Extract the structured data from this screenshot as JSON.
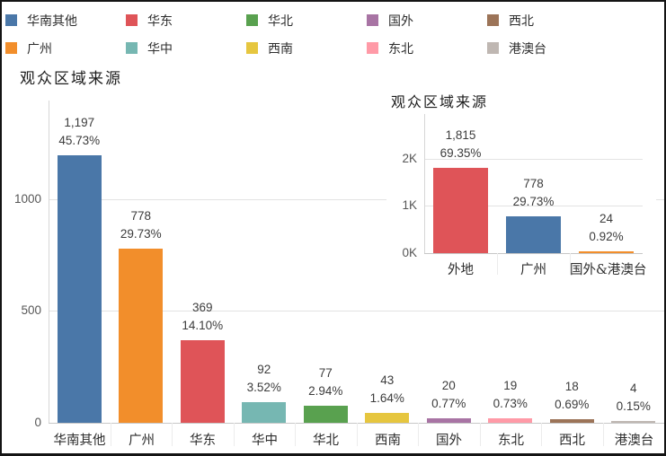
{
  "legend": {
    "items": [
      {
        "label": "华南其他",
        "color": "#4a77a8"
      },
      {
        "label": "华东",
        "color": "#df5458"
      },
      {
        "label": "华北",
        "color": "#59a14f"
      },
      {
        "label": "国外",
        "color": "#a874a4"
      },
      {
        "label": "西北",
        "color": "#9c7458"
      },
      {
        "label": "广州",
        "color": "#f28e2b"
      },
      {
        "label": "华中",
        "color": "#76b7b2"
      },
      {
        "label": "西南",
        "color": "#e6c63f"
      },
      {
        "label": "东北",
        "color": "#ff9aa7"
      },
      {
        "label": "港澳台",
        "color": "#bfb7b2"
      }
    ]
  },
  "chart_data": [
    {
      "id": "main",
      "type": "bar",
      "title": "观众区域来源",
      "categories": [
        "华南其他",
        "广州",
        "华东",
        "华中",
        "华北",
        "西南",
        "国外",
        "东北",
        "西北",
        "港澳台"
      ],
      "values": [
        1197,
        778,
        369,
        92,
        77,
        43,
        20,
        19,
        18,
        4
      ],
      "value_labels": [
        "1,197",
        "778",
        "369",
        "92",
        "77",
        "43",
        "20",
        "19",
        "18",
        "4"
      ],
      "pct_labels": [
        "45.73%",
        "29.73%",
        "14.10%",
        "3.52%",
        "2.94%",
        "1.64%",
        "0.77%",
        "0.73%",
        "0.69%",
        "0.15%"
      ],
      "bar_colors": [
        "#4a77a8",
        "#f28e2b",
        "#df5458",
        "#76b7b2",
        "#59a14f",
        "#e6c63f",
        "#a874a4",
        "#ff9aa7",
        "#9c7458",
        "#bfb7b2"
      ],
      "xlabel": "",
      "ylabel": "",
      "ylim": [
        0,
        1440
      ],
      "grid": true,
      "legend_position": "top",
      "yticks": [
        {
          "value": 0,
          "label": "0"
        },
        {
          "value": 500,
          "label": "500"
        },
        {
          "value": 1000,
          "label": "1000"
        }
      ]
    },
    {
      "id": "inset",
      "type": "bar",
      "title": "观众区域来源",
      "categories": [
        "外地",
        "广州",
        "国外&港澳台"
      ],
      "values": [
        1815,
        778,
        24
      ],
      "value_labels": [
        "1,815",
        "778",
        "24"
      ],
      "pct_labels": [
        "69.35%",
        "29.73%",
        "0.92%"
      ],
      "bar_colors": [
        "#df5458",
        "#4a77a8",
        "#f28e2b"
      ],
      "xlabel": "",
      "ylabel": "",
      "ylim": [
        0,
        2950
      ],
      "grid": true,
      "legend_position": "none",
      "yticks": [
        {
          "value": 0,
          "label": "0K"
        },
        {
          "value": 1000,
          "label": "1K"
        },
        {
          "value": 2000,
          "label": "2K"
        }
      ]
    }
  ]
}
